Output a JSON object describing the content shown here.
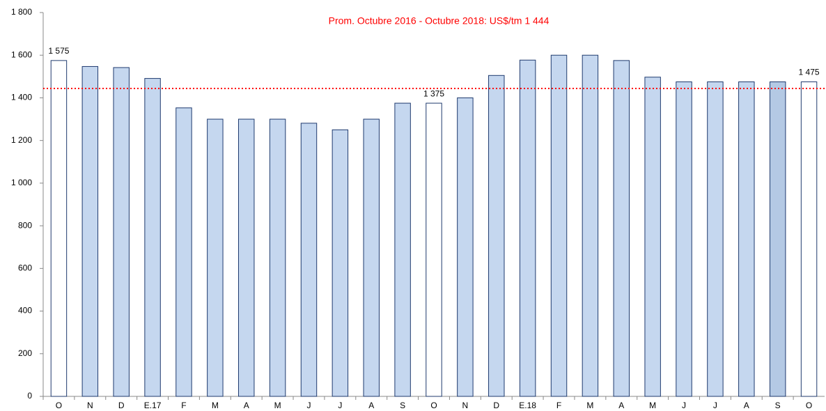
{
  "chart_data": {
    "type": "bar",
    "annotation": "Prom. Octubre 2016 - Octubre 2018: US$/tm 1 444",
    "average": 1444,
    "average_color": "#ff0000",
    "categories": [
      "O",
      "N",
      "D",
      "E.17",
      "F",
      "M",
      "A",
      "M",
      "J",
      "J",
      "A",
      "S",
      "O",
      "N",
      "D",
      "E.18",
      "F",
      "M",
      "A",
      "M",
      "J",
      "J",
      "A",
      "S",
      "O"
    ],
    "values": [
      1575,
      1547,
      1542,
      1491,
      1353,
      1300,
      1300,
      1300,
      1281,
      1250,
      1300,
      1375,
      1375,
      1400,
      1505,
      1577,
      1600,
      1600,
      1575,
      1497,
      1475,
      1475,
      1475,
      1475,
      1475
    ],
    "value_labels": [
      "1 575",
      null,
      null,
      null,
      null,
      null,
      null,
      null,
      null,
      null,
      null,
      null,
      "1 375",
      null,
      null,
      null,
      null,
      null,
      null,
      null,
      null,
      null,
      null,
      null,
      "1 475"
    ],
    "colors": [
      "#ffffff",
      "#c5d7ef",
      "#c5d7ef",
      "#c5d7ef",
      "#c5d7ef",
      "#c5d7ef",
      "#c5d7ef",
      "#c5d7ef",
      "#c5d7ef",
      "#c5d7ef",
      "#c5d7ef",
      "#c5d7ef",
      "#ffffff",
      "#c5d7ef",
      "#c5d7ef",
      "#c5d7ef",
      "#c5d7ef",
      "#c5d7ef",
      "#c5d7ef",
      "#c5d7ef",
      "#c5d7ef",
      "#c5d7ef",
      "#c5d7ef",
      "#b4c9e4",
      "#ffffff"
    ],
    "edge_color": "#1f3a6e",
    "ylim": [
      0,
      1800
    ],
    "yticks": [
      0,
      200,
      400,
      600,
      800,
      {
        "value": 1000,
        "label": "1 000"
      },
      {
        "value": 1200,
        "label": "1 200"
      },
      {
        "value": 1400,
        "label": "1 400"
      },
      {
        "value": 1600,
        "label": "1 600"
      },
      {
        "value": 1800,
        "label": "1 800"
      }
    ]
  }
}
